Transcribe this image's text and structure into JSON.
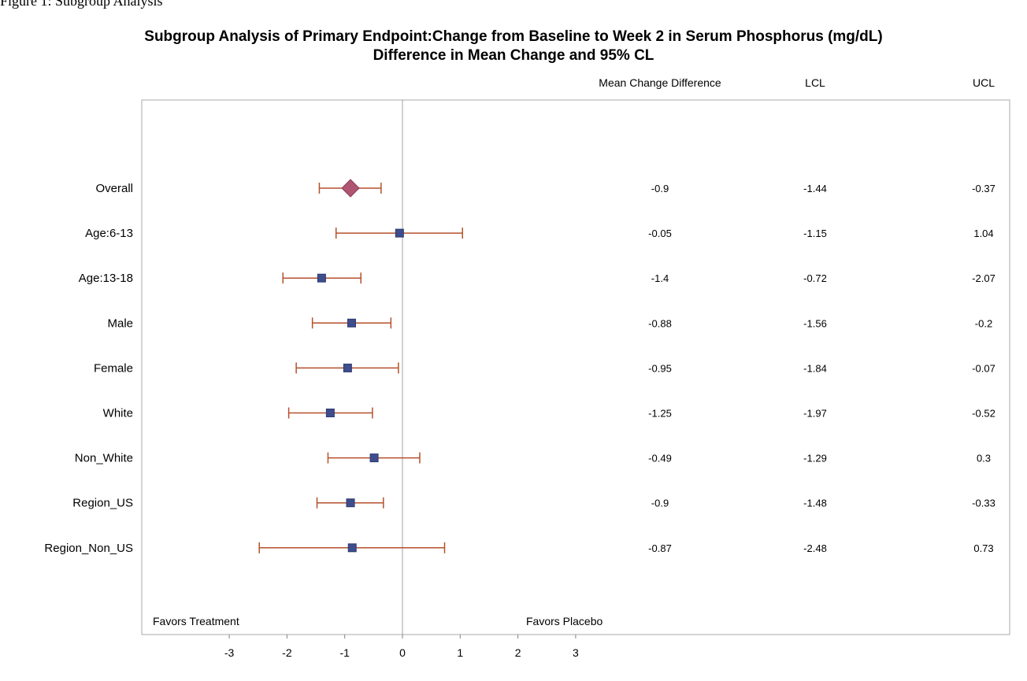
{
  "top_caption": "Figure 1: Subgroup Analysis",
  "chart_data": {
    "type": "forest",
    "title": "Subgroup Analysis of Primary Endpoint:Change from Baseline to Week 2 in Serum Phosphorus (mg/dL)",
    "subtitle": "Difference in Mean Change and 95% CL",
    "column_headers": {
      "estimate": "Mean Change Difference",
      "lcl": "LCL",
      "ucl": "UCL"
    },
    "xlim": [
      -3,
      3
    ],
    "x_ticks": [
      "-3",
      "-2",
      "-1",
      "0",
      "1",
      "2",
      "3"
    ],
    "reference_line_x": 0,
    "annotations": {
      "left": "Favors Treatment",
      "right": "Favors Placebo"
    },
    "colors": {
      "whisker": "#b5502b",
      "marker": "#3f4d8c",
      "overall_marker": "#b05571",
      "ref_line": "#a0a0a0",
      "frame": "#a8a8a8"
    },
    "rows": [
      {
        "label": "Overall",
        "estimate": -0.9,
        "lcl": -1.44,
        "ucl": -0.37,
        "estimate_text": "-0.9",
        "lcl_text": "-1.44",
        "ucl_text": "-0.37",
        "marker": "diamond"
      },
      {
        "label": "Age:6-13",
        "estimate": -0.05,
        "lcl": -1.15,
        "ucl": 1.04,
        "estimate_text": "-0.05",
        "lcl_text": "-1.15",
        "ucl_text": "1.04",
        "marker": "square"
      },
      {
        "label": "Age:13-18",
        "estimate": -1.4,
        "lcl": -0.72,
        "ucl": -2.07,
        "estimate_text": "-1.4",
        "lcl_text": "-0.72",
        "ucl_text": "-2.07",
        "marker": "square"
      },
      {
        "label": "Male",
        "estimate": -0.88,
        "lcl": -1.56,
        "ucl": -0.2,
        "estimate_text": "-0.88",
        "lcl_text": "-1.56",
        "ucl_text": "-0.2",
        "marker": "square"
      },
      {
        "label": "Female",
        "estimate": -0.95,
        "lcl": -1.84,
        "ucl": -0.07,
        "estimate_text": "-0.95",
        "lcl_text": "-1.84",
        "ucl_text": "-0.07",
        "marker": "square"
      },
      {
        "label": "White",
        "estimate": -1.25,
        "lcl": -1.97,
        "ucl": -0.52,
        "estimate_text": "-1.25",
        "lcl_text": "-1.97",
        "ucl_text": "-0.52",
        "marker": "square"
      },
      {
        "label": "Non_White",
        "estimate": -0.49,
        "lcl": -1.29,
        "ucl": 0.3,
        "estimate_text": "-0.49",
        "lcl_text": "-1.29",
        "ucl_text": "0.3",
        "marker": "square"
      },
      {
        "label": "Region_US",
        "estimate": -0.9,
        "lcl": -1.48,
        "ucl": -0.33,
        "estimate_text": "-0.9",
        "lcl_text": "-1.48",
        "ucl_text": "-0.33",
        "marker": "square"
      },
      {
        "label": "Region_Non_US",
        "estimate": -0.87,
        "lcl": -2.48,
        "ucl": 0.73,
        "estimate_text": "-0.87",
        "lcl_text": "-2.48",
        "ucl_text": "0.73",
        "marker": "square"
      }
    ]
  }
}
